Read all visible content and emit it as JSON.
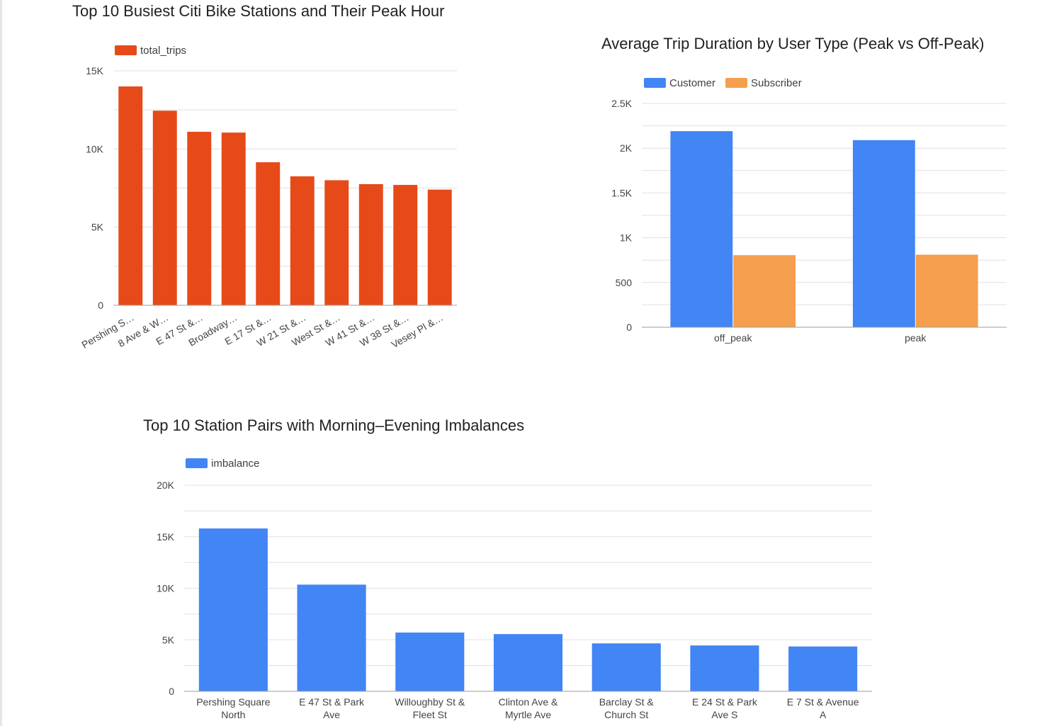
{
  "chart_data": [
    {
      "id": "busiest",
      "type": "bar",
      "title": "Top 10 Busiest Citi Bike Stations and Their Peak Hour",
      "categories": [
        "Pershing S…",
        "8 Ave & W…",
        "E 47 St &…",
        "Broadway…",
        "E 17 St &…",
        "W 21 St &…",
        "West St &…",
        "W 41 St &…",
        "W 38 St &…",
        "Vesey Pl &…"
      ],
      "series": [
        {
          "name": "total_trips",
          "color": "#e64a19",
          "values": [
            14000,
            12450,
            11100,
            11050,
            9150,
            8250,
            8000,
            7750,
            7700,
            7400
          ]
        }
      ],
      "ylim": [
        0,
        15000
      ],
      "yticks": [
        0,
        5000,
        10000,
        15000
      ],
      "ytick_labels": [
        "0",
        "5K",
        "10K",
        "15K"
      ],
      "legend": "top-left",
      "grid": true
    },
    {
      "id": "duration",
      "type": "bar",
      "title": "Average Trip Duration by User Type (Peak vs Off-Peak)",
      "categories": [
        "off_peak",
        "peak"
      ],
      "series": [
        {
          "name": "Customer",
          "color": "#4285f4",
          "values": [
            2190,
            2090
          ]
        },
        {
          "name": "Subscriber",
          "color": "#f59e4e",
          "values": [
            805,
            810
          ]
        }
      ],
      "ylim": [
        0,
        2500
      ],
      "yticks": [
        0,
        500,
        1000,
        1500,
        2000,
        2500
      ],
      "ytick_labels": [
        "0",
        "500",
        "1K",
        "1.5K",
        "2K",
        "2.5K"
      ],
      "legend": "top-left",
      "grid": true
    },
    {
      "id": "imbalance",
      "type": "bar",
      "title": "Top 10 Station Pairs with Morning–Evening Imbalances",
      "categories": [
        [
          "Pershing Square",
          "North"
        ],
        [
          "E 47 St & Park",
          "Ave"
        ],
        [
          "Willoughby St &",
          "Fleet St"
        ],
        [
          "Clinton Ave &",
          "Myrtle Ave"
        ],
        [
          "Barclay St &",
          "Church St"
        ],
        [
          "E 24 St & Park",
          "Ave S"
        ],
        [
          "E 7 St & Avenue",
          "A"
        ]
      ],
      "series": [
        {
          "name": "imbalance",
          "color": "#4285f4",
          "values": [
            15800,
            10350,
            5700,
            5550,
            4650,
            4450,
            4350
          ]
        }
      ],
      "ylim": [
        0,
        20000
      ],
      "yticks": [
        0,
        5000,
        10000,
        15000,
        20000
      ],
      "ytick_labels": [
        "0",
        "5K",
        "10K",
        "15K",
        "20K"
      ],
      "legend": "top-left",
      "grid": true
    }
  ]
}
